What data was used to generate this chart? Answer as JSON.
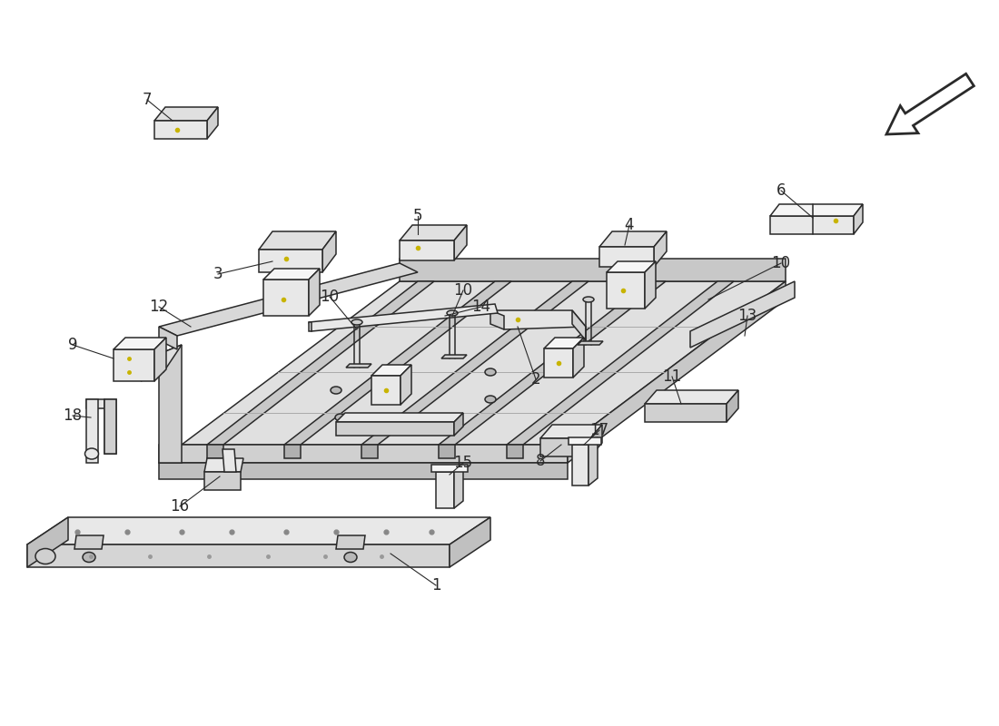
{
  "bg_color": "#ffffff",
  "lc": "#2a2a2a",
  "lw": 1.1,
  "fc_light": "#e8e8e8",
  "fc_mid": "#d0d0d0",
  "fc_dark": "#b8b8b8",
  "fc_darker": "#a0a0a0",
  "fc_white": "#f5f5f5",
  "dot_color": "#c8b400",
  "label_fs": 12,
  "bold_label_fs": 14
}
